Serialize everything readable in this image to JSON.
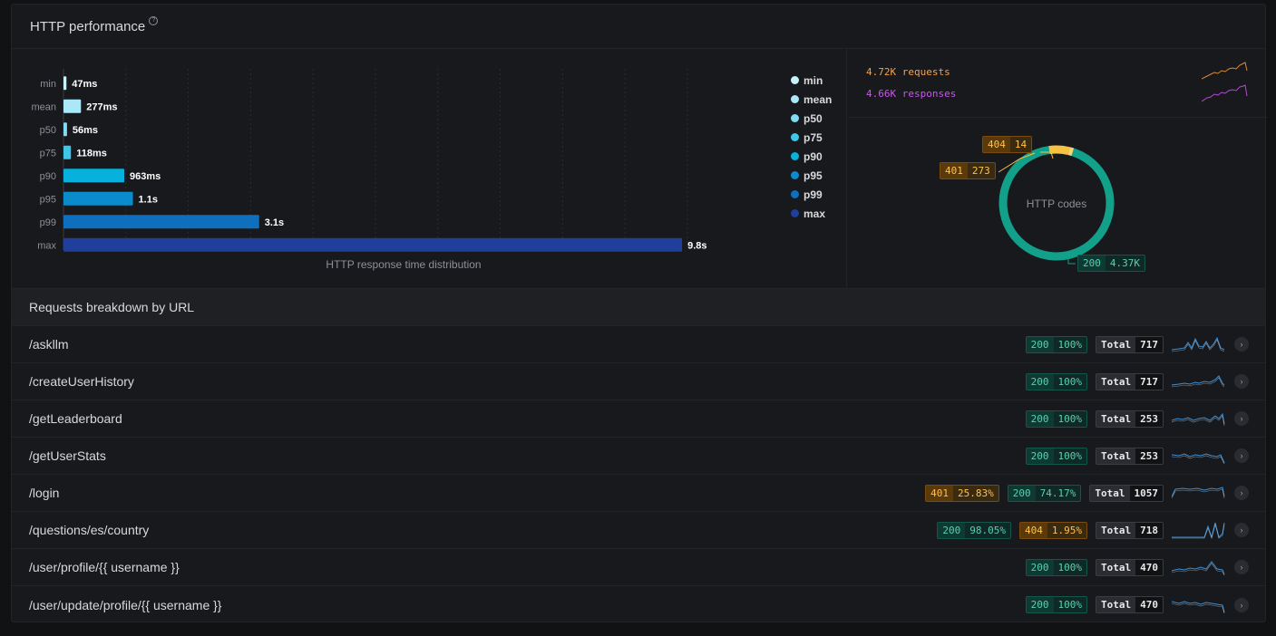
{
  "header": {
    "title": "HTTP performance",
    "help_icon": "?"
  },
  "chart_data": {
    "type": "bar",
    "orientation": "horizontal",
    "categories": [
      "min",
      "mean",
      "p50",
      "p75",
      "p90",
      "p95",
      "p99",
      "max"
    ],
    "values": [
      47,
      277,
      56,
      118,
      963,
      1100,
      3100,
      9800
    ],
    "value_labels": [
      "47ms",
      "277ms",
      "56ms",
      "118ms",
      "963ms",
      "1.1s",
      "3.1s",
      "9.8s"
    ],
    "unit": "ms",
    "xlabel": "HTTP response time distribution",
    "xlim": [
      0,
      10000
    ],
    "grid": true,
    "legend_placement": "right",
    "colors": [
      "#c8f0fa",
      "#a8e8f7",
      "#7fdcf3",
      "#3ec6e8",
      "#06b2db",
      "#0a8ccc",
      "#0d6fbe",
      "#1f3f9a"
    ]
  },
  "legend": [
    {
      "label": "min",
      "color": "#c8f0fa"
    },
    {
      "label": "mean",
      "color": "#a8e8f7"
    },
    {
      "label": "p50",
      "color": "#7fdcf3"
    },
    {
      "label": "p75",
      "color": "#3ec6e8"
    },
    {
      "label": "p90",
      "color": "#06b2db"
    },
    {
      "label": "p95",
      "color": "#0a8ccc"
    },
    {
      "label": "p99",
      "color": "#0d6fbe"
    },
    {
      "label": "max",
      "color": "#1f3f9a"
    }
  ],
  "summary": {
    "requests": "4.72K requests",
    "responses": "4.66K responses",
    "requests_color": "#f5a04a",
    "responses_color": "#c657e8"
  },
  "donut": {
    "center_label": "HTTP codes",
    "segments": [
      {
        "code": "200",
        "count": "4.37K",
        "value": 4370,
        "color": "#12a08a"
      },
      {
        "code": "401",
        "count": "273",
        "value": 273,
        "color": "#f5c242"
      },
      {
        "code": "404",
        "count": "14",
        "value": 14,
        "color": "#f8d370"
      }
    ]
  },
  "breakdown": {
    "title": "Requests breakdown by URL",
    "total_label": "Total",
    "rows": [
      {
        "url": "/askllm",
        "codes": [
          {
            "code": "200",
            "pct": "100%",
            "kind": "green"
          }
        ],
        "total": "717"
      },
      {
        "url": "/createUserHistory",
        "codes": [
          {
            "code": "200",
            "pct": "100%",
            "kind": "green"
          }
        ],
        "total": "717"
      },
      {
        "url": "/getLeaderboard",
        "codes": [
          {
            "code": "200",
            "pct": "100%",
            "kind": "green"
          }
        ],
        "total": "253"
      },
      {
        "url": "/getUserStats",
        "codes": [
          {
            "code": "200",
            "pct": "100%",
            "kind": "green"
          }
        ],
        "total": "253"
      },
      {
        "url": "/login",
        "codes": [
          {
            "code": "401",
            "pct": "25.83%",
            "kind": "orange"
          },
          {
            "code": "200",
            "pct": "74.17%",
            "kind": "green"
          }
        ],
        "total": "1057"
      },
      {
        "url": "/questions/es/country",
        "codes": [
          {
            "code": "200",
            "pct": "98.05%",
            "kind": "green"
          },
          {
            "code": "404",
            "pct": "1.95%",
            "kind": "orange"
          }
        ],
        "total": "718"
      },
      {
        "url": "/user/profile/{{ username }}",
        "codes": [
          {
            "code": "200",
            "pct": "100%",
            "kind": "green"
          }
        ],
        "total": "470"
      },
      {
        "url": "/user/update/profile/{{ username }}",
        "codes": [
          {
            "code": "200",
            "pct": "100%",
            "kind": "green"
          }
        ],
        "total": "470"
      }
    ]
  }
}
